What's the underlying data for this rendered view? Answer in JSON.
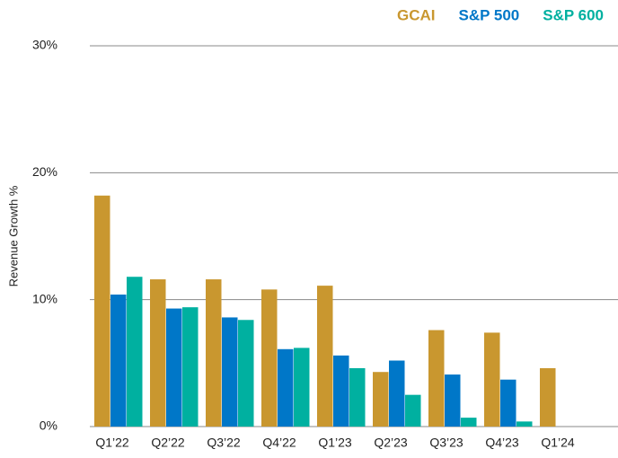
{
  "chart_data": {
    "type": "bar",
    "y_label": "Revenue Growth %",
    "categories": [
      "Q1’22",
      "Q2’22",
      "Q3’22",
      "Q4’22",
      "Q1’23",
      "Q2’23",
      "Q3’23",
      "Q4’23",
      "Q1’24"
    ],
    "series": [
      {
        "name": "GCAI",
        "color": "#c9972f",
        "values": [
          18.2,
          11.6,
          11.6,
          10.8,
          11.1,
          4.3,
          7.6,
          7.4,
          4.6
        ]
      },
      {
        "name": "S&P 500",
        "color": "#0077c8",
        "values": [
          10.4,
          9.3,
          8.6,
          6.1,
          5.6,
          5.2,
          4.1,
          3.7,
          null
        ]
      },
      {
        "name": "S&P 600",
        "color": "#00b0a0",
        "values": [
          11.8,
          9.4,
          8.4,
          6.2,
          4.6,
          2.5,
          0.7,
          0.4,
          null
        ]
      }
    ],
    "ylim": [
      0,
      30
    ],
    "yticks": [
      {
        "value": 0,
        "label": "0%"
      },
      {
        "value": 10,
        "label": "10%"
      },
      {
        "value": 20,
        "label": "20%"
      },
      {
        "value": 30,
        "label": "30%"
      }
    ],
    "grid": true,
    "legend": "top-right"
  }
}
